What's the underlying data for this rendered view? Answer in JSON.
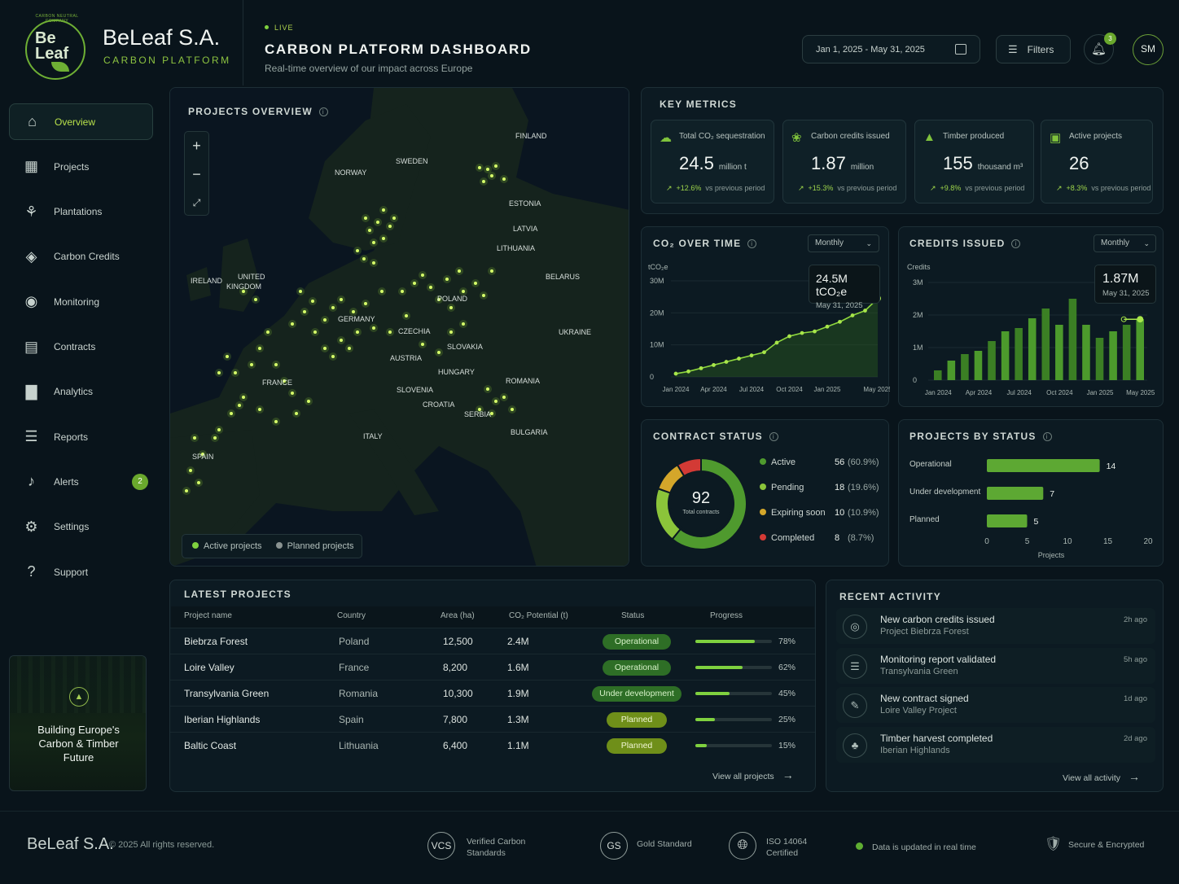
{
  "brand": {
    "logo_text": "Be Leaf",
    "logo_ring": "CARBON NEUTRAL COMPANY",
    "name": "BeLeaf S.A.",
    "sub": "CARBON PLATFORM"
  },
  "header": {
    "live": "LIVE",
    "title": "CARBON PLATFORM DASHBOARD",
    "subtitle": "Real-time overview of our impact across Europe",
    "date_range": "Jan 1, 2025 - May 31, 2025",
    "filters": "Filters",
    "notif_count": "3",
    "avatar": "SM"
  },
  "sidebar": {
    "items": [
      {
        "label": "Overview",
        "icon": "home-icon"
      },
      {
        "label": "Projects",
        "icon": "calendar-icon"
      },
      {
        "label": "Plantations",
        "icon": "plant-icon"
      },
      {
        "label": "Carbon Credits",
        "icon": "layers-icon"
      },
      {
        "label": "Monitoring",
        "icon": "broadcast-icon"
      },
      {
        "label": "Contracts",
        "icon": "document-icon"
      },
      {
        "label": "Analytics",
        "icon": "bar-chart-icon"
      },
      {
        "label": "Reports",
        "icon": "report-icon"
      },
      {
        "label": "Alerts",
        "icon": "bell-icon",
        "badge": "2"
      },
      {
        "label": "Settings",
        "icon": "gear-icon"
      },
      {
        "label": "Support",
        "icon": "help-icon"
      }
    ],
    "promo": "Building Europe's Carbon & Timber Future"
  },
  "map": {
    "title": "PROJECTS OVERVIEW",
    "legend_active": "Active projects",
    "legend_planned": "Planned projects",
    "labels": [
      "FINLAND",
      "SWEDEN",
      "NORWAY",
      "ESTONIA",
      "LATVIA",
      "LITHUANIA",
      "UNITED KINGDOM",
      "IRELAND",
      "BELARUS",
      "POLAND",
      "GERMANY",
      "CZECHIA",
      "SLOVAKIA",
      "UKRAINE",
      "AUSTRIA",
      "HUNGARY",
      "FRANCE",
      "ROMANIA",
      "SLOVENIA",
      "CROATIA",
      "SERBIA",
      "BULGARIA",
      "ITALY",
      "SPAIN"
    ]
  },
  "metrics": {
    "title": "KEY METRICS",
    "cards": [
      {
        "title": "Total CO₂ sequestration",
        "value": "24.5",
        "unit": "million t",
        "delta": "+12.6%",
        "vs": "vs previous period"
      },
      {
        "title": "Carbon credits issued",
        "value": "1.87",
        "unit": "million",
        "delta": "+15.3%",
        "vs": "vs previous period"
      },
      {
        "title": "Timber produced",
        "value": "155",
        "unit": "thousand m³",
        "delta": "+9.8%",
        "vs": "vs previous period"
      },
      {
        "title": "Active projects",
        "value": "26",
        "unit": "",
        "delta": "+8.3%",
        "vs": "vs previous period"
      }
    ]
  },
  "co2_chart": {
    "title": "CO₂ OVER TIME",
    "period": "Monthly",
    "callout_value": "24.5M tCO₂e",
    "callout_date": "May 31, 2025"
  },
  "credits_chart": {
    "title": "CREDITS ISSUED",
    "period": "Monthly",
    "callout_value": "1.87M",
    "callout_date": "May 31, 2025"
  },
  "contract_status": {
    "title": "CONTRACT STATUS",
    "total": "92",
    "total_label": "Total contracts",
    "items": [
      {
        "label": "Active",
        "count": "56",
        "pct": "(60.9%)",
        "color": "#4f9a2e"
      },
      {
        "label": "Pending",
        "count": "18",
        "pct": "(19.6%)",
        "color": "#8bc43a"
      },
      {
        "label": "Expiring soon",
        "count": "10",
        "pct": "(10.9%)",
        "color": "#d4a62a"
      },
      {
        "label": "Completed",
        "count": "8",
        "pct": "(8.7%)",
        "color": "#d33a35"
      }
    ]
  },
  "projects_status": {
    "title": "PROJECTS BY STATUS"
  },
  "latest": {
    "title": "LATEST PROJECTS",
    "headers": [
      "Project name",
      "Country",
      "Area (ha)",
      "CO₂ Potential (t)",
      "Status",
      "Progress"
    ],
    "rows": [
      {
        "name": "Biebrza Forest",
        "country": "Poland",
        "area": "12,500",
        "co2": "2.4M",
        "status": "Operational",
        "cls": "operational",
        "progress": 78,
        "pct": "78%"
      },
      {
        "name": "Loire Valley",
        "country": "France",
        "area": "8,200",
        "co2": "1.6M",
        "status": "Operational",
        "cls": "operational",
        "progress": 62,
        "pct": "62%"
      },
      {
        "name": "Transylvania Green",
        "country": "Romania",
        "area": "10,300",
        "co2": "1.9M",
        "status": "Under development",
        "cls": "development",
        "progress": 45,
        "pct": "45%"
      },
      {
        "name": "Iberian Highlands",
        "country": "Spain",
        "area": "7,800",
        "co2": "1.3M",
        "status": "Planned",
        "cls": "planned",
        "progress": 25,
        "pct": "25%"
      },
      {
        "name": "Baltic Coast",
        "country": "Lithuania",
        "area": "6,400",
        "co2": "1.1M",
        "status": "Planned",
        "cls": "planned",
        "progress": 15,
        "pct": "15%"
      }
    ],
    "view_all": "View all projects"
  },
  "activity": {
    "title": "RECENT ACTIVITY",
    "items": [
      {
        "title": "New carbon credits issued",
        "sub": "Project Biebrza Forest",
        "when": "2h ago",
        "icon": "credit-icon"
      },
      {
        "title": "Monitoring report validated",
        "sub": "Transylvania Green",
        "when": "5h ago",
        "icon": "report-icon"
      },
      {
        "title": "New contract signed",
        "sub": "Loire Valley Project",
        "when": "1d ago",
        "icon": "pen-icon"
      },
      {
        "title": "Timber harvest completed",
        "sub": "Iberian Highlands",
        "when": "2d ago",
        "icon": "timber-icon"
      }
    ],
    "view_all": "View all activity"
  },
  "footer": {
    "brand": "BeLeaf S.A.",
    "copyright": "© 2025 All rights reserved.",
    "vcs": "VCS",
    "vcs_label": "Verified Carbon Standards",
    "gs": "GS",
    "gs_label": "Gold Standard",
    "iso_label": "ISO 14064 Certified",
    "realtime": "Data is updated in real time",
    "secure": "Secure & Encrypted"
  },
  "chart_data": [
    {
      "type": "line",
      "title": "CO₂ OVER TIME",
      "ylabel": "tCO₂e",
      "x": [
        "Jan 2024",
        "Feb 2024",
        "Mar 2024",
        "Apr 2024",
        "May 2024",
        "Jun 2024",
        "Jul 2024",
        "Aug 2024",
        "Sep 2024",
        "Oct 2024",
        "Nov 2024",
        "Dec 2024",
        "Jan 2025",
        "Feb 2025",
        "Mar 2025",
        "Apr 2025",
        "May 2025"
      ],
      "x_ticks": [
        "Jan 2024",
        "Apr 2024",
        "Jul 2024",
        "Oct 2024",
        "Jan 2025",
        "May 2025"
      ],
      "y_ticks": [
        "0",
        "10M",
        "20M",
        "30M"
      ],
      "ylim": [
        0,
        30
      ],
      "values": [
        1.0,
        1.7,
        2.7,
        3.7,
        4.7,
        5.7,
        6.7,
        7.7,
        10.7,
        12.7,
        13.7,
        14.2,
        15.7,
        17.2,
        19.2,
        20.7,
        24.5
      ]
    },
    {
      "type": "bar",
      "title": "CREDITS ISSUED",
      "ylabel": "Credits",
      "categories": [
        "Jan 2024",
        "Feb 2024",
        "Mar 2024",
        "Apr 2024",
        "May 2024",
        "Jun 2024",
        "Jul 2024",
        "Aug 2024",
        "Sep 2024",
        "Oct 2024",
        "Nov 2024",
        "Dec 2024",
        "Jan 2025",
        "Feb 2025",
        "Mar 2025",
        "May 2025"
      ],
      "x_ticks": [
        "Jan 2024",
        "Apr 2024",
        "Jul 2024",
        "Oct 2024",
        "Jan 2025",
        "May 2025"
      ],
      "y_ticks": [
        "0",
        "1M",
        "2M",
        "3M"
      ],
      "ylim": [
        0,
        3
      ],
      "values": [
        0.3,
        0.6,
        0.8,
        0.9,
        1.2,
        1.5,
        1.6,
        1.9,
        2.2,
        1.7,
        2.5,
        1.7,
        1.3,
        1.5,
        1.7,
        1.87
      ]
    },
    {
      "type": "pie",
      "title": "CONTRACT STATUS",
      "categories": [
        "Active",
        "Pending",
        "Expiring soon",
        "Completed"
      ],
      "values": [
        56,
        18,
        10,
        8
      ]
    },
    {
      "type": "bar",
      "title": "PROJECTS BY STATUS",
      "orientation": "horizontal",
      "xlabel": "Projects",
      "categories": [
        "Operational",
        "Under development",
        "Planned"
      ],
      "values": [
        14,
        7,
        5
      ],
      "x_ticks": [
        "0",
        "5",
        "10",
        "15",
        "20"
      ],
      "xlim": [
        0,
        20
      ]
    }
  ]
}
